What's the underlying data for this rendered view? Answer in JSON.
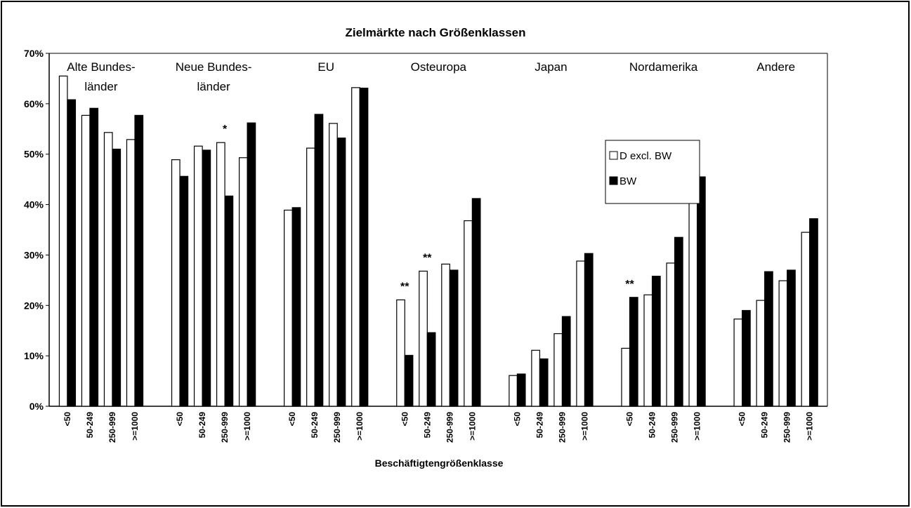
{
  "chart_data": {
    "type": "bar",
    "title": "Zielmärkte nach Größenklassen",
    "x_label": "Beschäftigtengrößenklasse",
    "groups": [
      {
        "label": [
          "Alte Bundes-",
          "länder"
        ],
        "categories": [
          "<50",
          "50-249",
          "250-999",
          ">=1000"
        ]
      },
      {
        "label": [
          "Neue Bundes-",
          "länder"
        ],
        "categories": [
          "<50",
          "50-249",
          "250-999",
          ">=1000"
        ]
      },
      {
        "label": [
          "EU"
        ],
        "categories": [
          "<50",
          "50-249",
          "250-999",
          ">=1000"
        ]
      },
      {
        "label": [
          "Osteuropa"
        ],
        "categories": [
          "<50",
          "50-249",
          "250-999",
          ">=1000"
        ]
      },
      {
        "label": [
          "Japan"
        ],
        "categories": [
          "<50",
          "50-249",
          "250-999",
          ">=1000"
        ]
      },
      {
        "label": [
          "Nordamerika"
        ],
        "categories": [
          "<50",
          "50-249",
          "250-999",
          ">=1000"
        ]
      },
      {
        "label": [
          "Andere"
        ],
        "categories": [
          "<50",
          "50-249",
          "250-999",
          ">=1000"
        ]
      }
    ],
    "series": [
      {
        "name": "D excl. BW",
        "color": "#ffffff",
        "values": [
          65.5,
          57.7,
          54.3,
          52.9,
          48.9,
          51.6,
          52.3,
          49.3,
          38.9,
          51.2,
          56.1,
          63.2,
          21.1,
          26.8,
          28.2,
          36.8,
          6.1,
          11.1,
          14.4,
          28.8,
          11.5,
          22.1,
          28.4,
          44.5,
          17.3,
          21.0,
          24.9,
          34.5
        ]
      },
      {
        "name": "BW",
        "color": "#000000",
        "values": [
          60.8,
          59.1,
          51.0,
          57.7,
          45.6,
          50.8,
          41.7,
          56.2,
          39.4,
          57.9,
          53.2,
          63.1,
          10.1,
          14.6,
          27.0,
          41.2,
          6.4,
          9.4,
          17.8,
          30.3,
          21.6,
          25.8,
          33.5,
          45.5,
          19.0,
          26.7,
          27.0,
          37.2
        ]
      }
    ],
    "annotations": [
      {
        "text": "*",
        "group": 1,
        "category": 2
      },
      {
        "text": "**",
        "group": 3,
        "category": 0
      },
      {
        "text": "**",
        "group": 3,
        "category": 1
      },
      {
        "text": "**",
        "group": 5,
        "category": 0
      }
    ],
    "ylim": [
      0,
      70
    ],
    "yticks": [
      {
        "value": 0,
        "label": "0%"
      },
      {
        "value": 10,
        "label": "10%"
      },
      {
        "value": 20,
        "label": "20%"
      },
      {
        "value": 30,
        "label": "30%"
      },
      {
        "value": 40,
        "label": "40%"
      },
      {
        "value": 50,
        "label": "50%"
      },
      {
        "value": 60,
        "label": "60%"
      },
      {
        "value": 70,
        "label": "70%"
      }
    ]
  }
}
